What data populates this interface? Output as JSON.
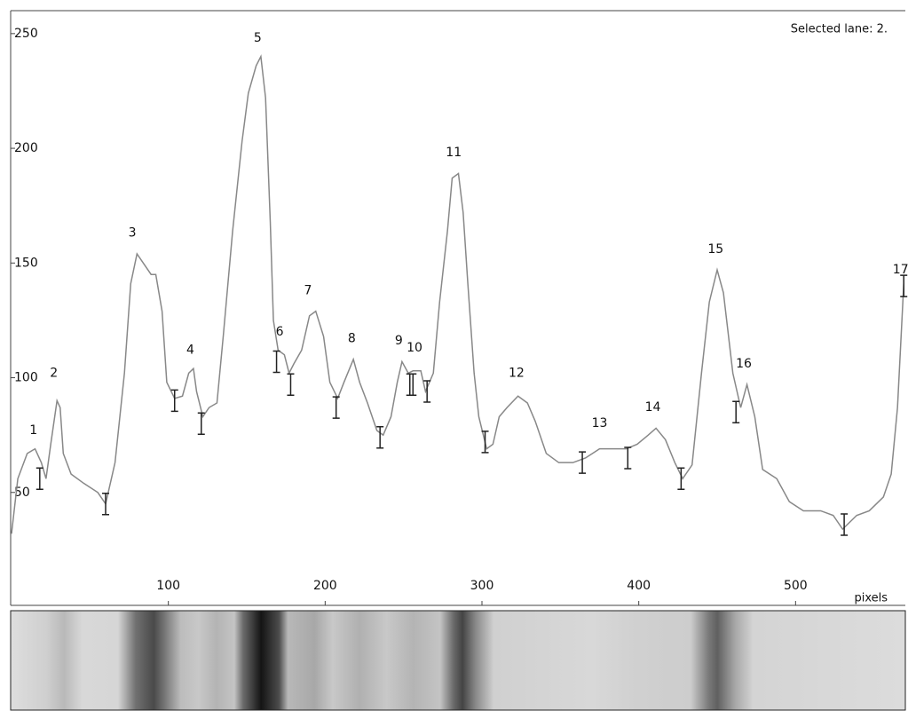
{
  "chart_data": {
    "type": "line",
    "status": "Selected lane: 2.",
    "x_label": "pixels",
    "xlim": [
      0,
      570
    ],
    "xticks": [
      100,
      200,
      300,
      400,
      500
    ],
    "ylim": [
      0,
      260
    ],
    "yticks": [
      50,
      100,
      150,
      200,
      250
    ],
    "color": "#888888",
    "x": [
      0,
      4,
      10,
      15,
      19,
      22,
      25,
      29,
      31,
      33,
      38,
      46,
      55,
      60,
      66,
      72,
      76,
      80,
      84,
      89,
      92,
      96,
      99,
      104,
      109,
      113,
      116,
      118,
      122,
      126,
      131,
      135,
      141,
      147,
      151,
      156,
      159,
      162,
      165,
      167,
      170,
      174,
      177,
      180,
      185,
      190,
      194,
      199,
      203,
      208,
      212,
      218,
      222,
      227,
      233,
      237,
      242,
      246,
      249,
      253,
      256,
      261,
      264,
      269,
      273,
      278,
      281,
      285,
      288,
      291,
      295,
      298,
      303,
      307,
      311,
      316,
      323,
      329,
      334,
      341,
      349,
      358,
      366,
      375,
      383,
      392,
      399,
      406,
      411,
      417,
      423,
      428,
      434,
      440,
      445,
      450,
      454,
      460,
      465,
      469,
      474,
      479,
      488,
      496,
      505,
      516,
      524,
      530,
      539,
      547,
      556,
      561,
      565,
      569
    ],
    "values": [
      32,
      56,
      67,
      69,
      63,
      56,
      71,
      90,
      87,
      67,
      58,
      54,
      50,
      45,
      63,
      102,
      141,
      154,
      150,
      145,
      145,
      129,
      98,
      91,
      92,
      102,
      104,
      94,
      83,
      87,
      89,
      118,
      164,
      203,
      224,
      236,
      240,
      222,
      168,
      125,
      112,
      110,
      102,
      106,
      112,
      127,
      129,
      118,
      98,
      91,
      98,
      108,
      98,
      89,
      77,
      75,
      83,
      98,
      107,
      102,
      103,
      103,
      94,
      102,
      133,
      164,
      187,
      189,
      172,
      141,
      102,
      83,
      69,
      71,
      83,
      87,
      92,
      89,
      81,
      67,
      63,
      63,
      65,
      69,
      69,
      69,
      71,
      75,
      78,
      73,
      63,
      56,
      62,
      102,
      133,
      147,
      137,
      102,
      87,
      97,
      83,
      60,
      56,
      46,
      42,
      42,
      40,
      34,
      40,
      42,
      48,
      58,
      87,
      141
    ],
    "markers": {
      "x": [
        18,
        60,
        104,
        121,
        169,
        178,
        207,
        235,
        254,
        256,
        265,
        302,
        364,
        393,
        427,
        462,
        531,
        569
      ],
      "y": [
        56,
        45,
        90,
        80,
        107,
        97,
        87,
        74,
        97,
        97,
        94,
        72,
        63,
        65,
        56,
        85,
        36,
        140
      ]
    },
    "peaks": {
      "labels": [
        "1",
        "2",
        "3",
        "4",
        "5",
        "6",
        "7",
        "8",
        "9",
        "10",
        "11",
        "12",
        "13",
        "14",
        "15",
        "16",
        "17"
      ],
      "x": [
        14,
        27,
        77,
        114,
        157,
        171,
        189,
        217,
        247,
        257,
        282,
        322,
        375,
        409,
        449,
        467,
        567
      ],
      "y": [
        77,
        102,
        163,
        112,
        248,
        120,
        138,
        117,
        116,
        113,
        198,
        102,
        80,
        87,
        156,
        106,
        147
      ]
    }
  }
}
